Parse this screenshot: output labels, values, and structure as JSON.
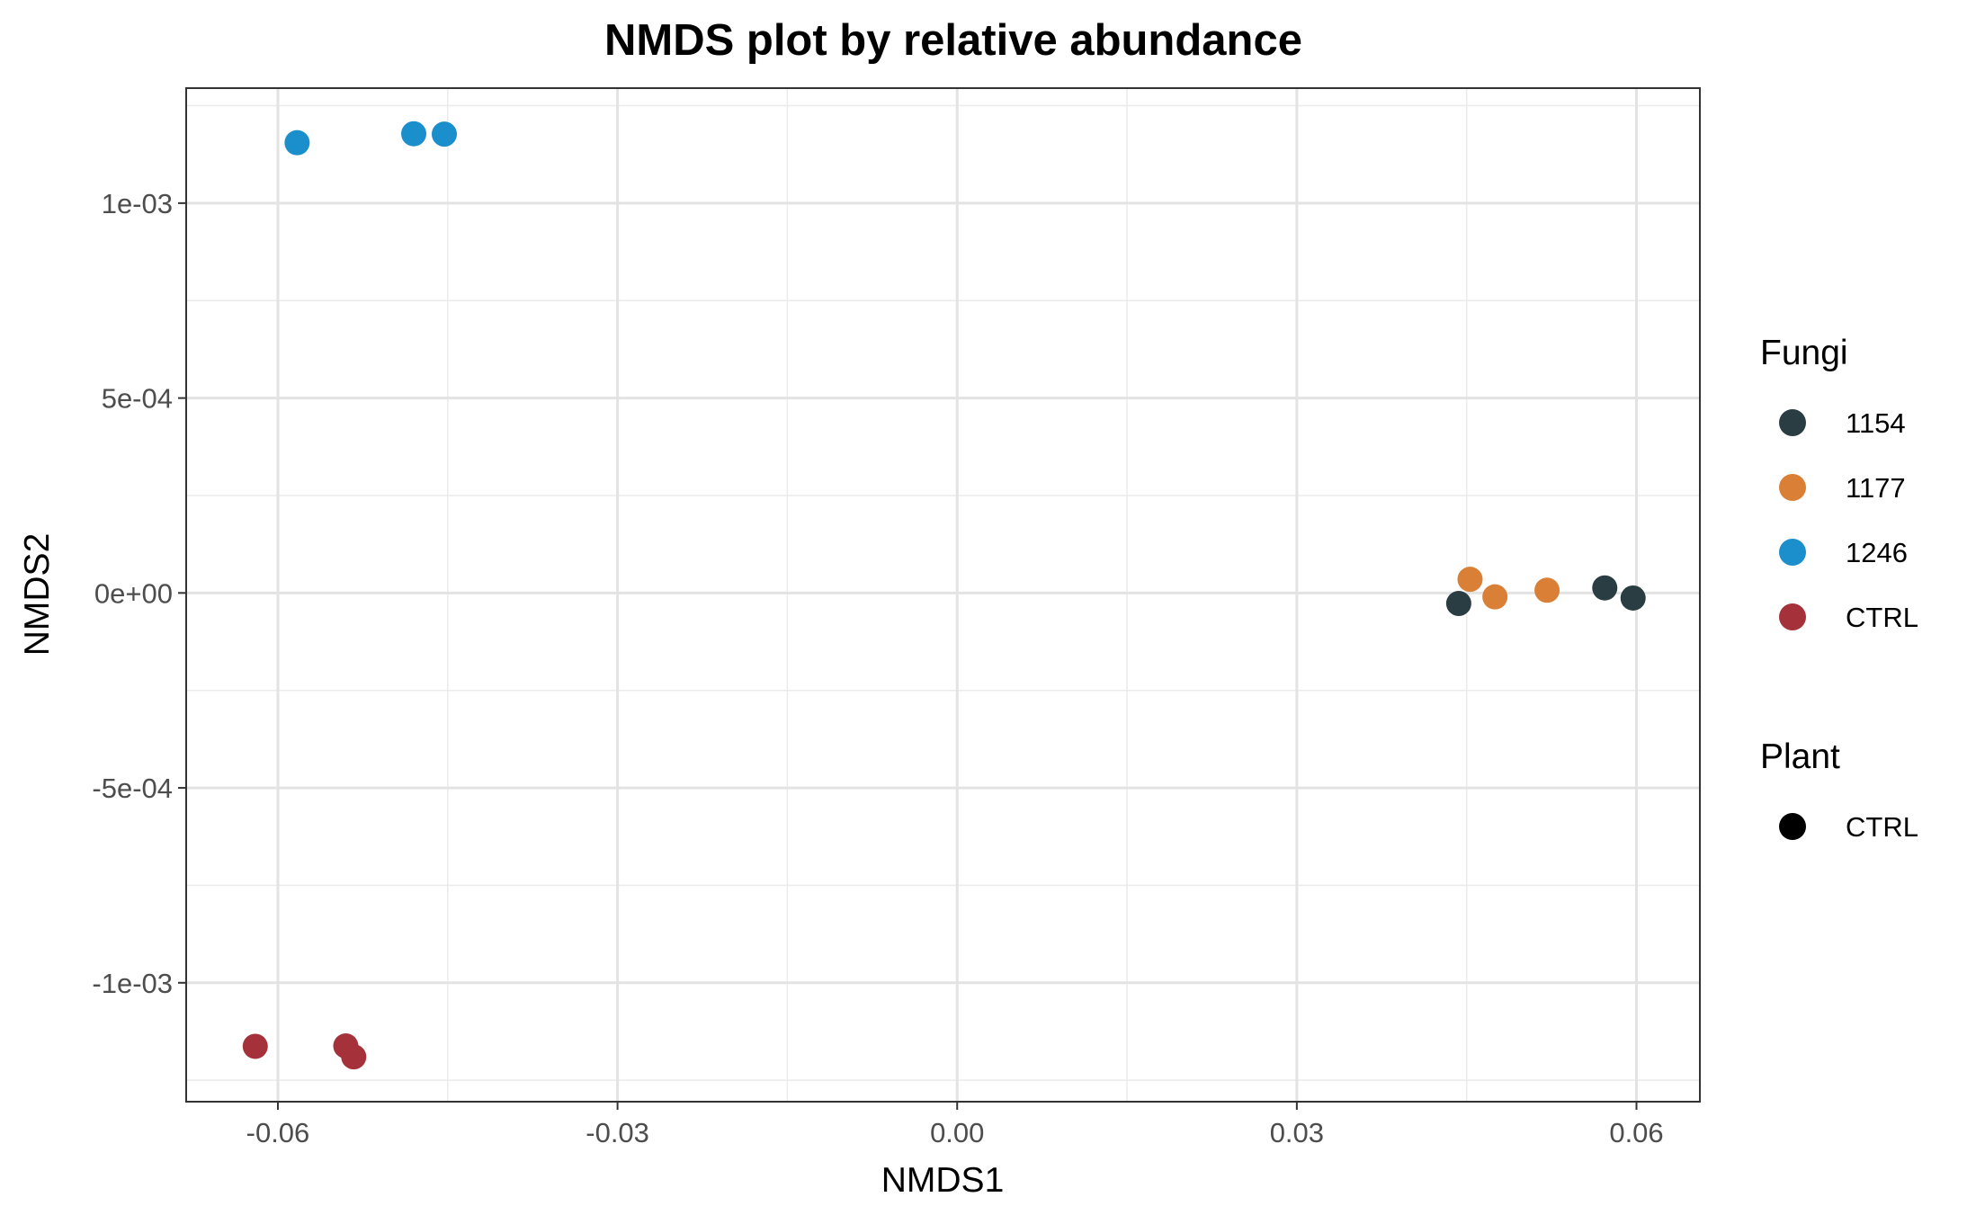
{
  "chart_data": {
    "type": "scatter",
    "title": "NMDS plot by relative abundance",
    "xlabel": "NMDS1",
    "ylabel": "NMDS2",
    "xlim": [
      -0.0681,
      0.0656
    ],
    "ylim": [
      -0.001305,
      0.001295
    ],
    "x_ticks": [
      -0.06,
      -0.03,
      0.0,
      0.03,
      0.06
    ],
    "x_tick_labels": [
      "-0.06",
      "-0.03",
      "0.00",
      "0.03",
      "0.06"
    ],
    "y_ticks": [
      0.001,
      0.0005,
      0.0,
      -0.0005,
      -0.001
    ],
    "y_tick_labels": [
      "1e-03",
      "5e-04",
      "0e+00",
      "-5e-04",
      "-1e-03"
    ],
    "grid": true,
    "legend_position": "right",
    "series": [
      {
        "name": "1154",
        "color": "#2a3d42",
        "points": [
          [
            0.0443,
            -2.7e-05
          ],
          [
            0.0572,
            1.3e-05
          ],
          [
            0.0597,
            -1.3e-05
          ]
        ]
      },
      {
        "name": "1177",
        "color": "#d97f36",
        "points": [
          [
            0.0453,
            3.5e-05
          ],
          [
            0.0475,
            -1e-05
          ],
          [
            0.0521,
            7e-06
          ]
        ]
      },
      {
        "name": "1246",
        "color": "#1b8fcc",
        "points": [
          [
            -0.0583,
            0.001155
          ],
          [
            -0.048,
            0.001178
          ],
          [
            -0.0453,
            0.001177
          ]
        ]
      },
      {
        "name": "CTRL",
        "color": "#a5323a",
        "points": [
          [
            -0.062,
            -0.001163
          ],
          [
            -0.054,
            -0.001162
          ],
          [
            -0.0533,
            -0.00119
          ]
        ]
      }
    ],
    "legends": [
      {
        "title": "Fungi",
        "items": [
          {
            "label": "1154",
            "color": "#2a3d42"
          },
          {
            "label": "1177",
            "color": "#d97f36"
          },
          {
            "label": "1246",
            "color": "#1b8fcc"
          },
          {
            "label": "CTRL",
            "color": "#a5323a"
          }
        ]
      },
      {
        "title": "Plant",
        "items": [
          {
            "label": "CTRL",
            "color": "#000000"
          }
        ]
      }
    ]
  }
}
